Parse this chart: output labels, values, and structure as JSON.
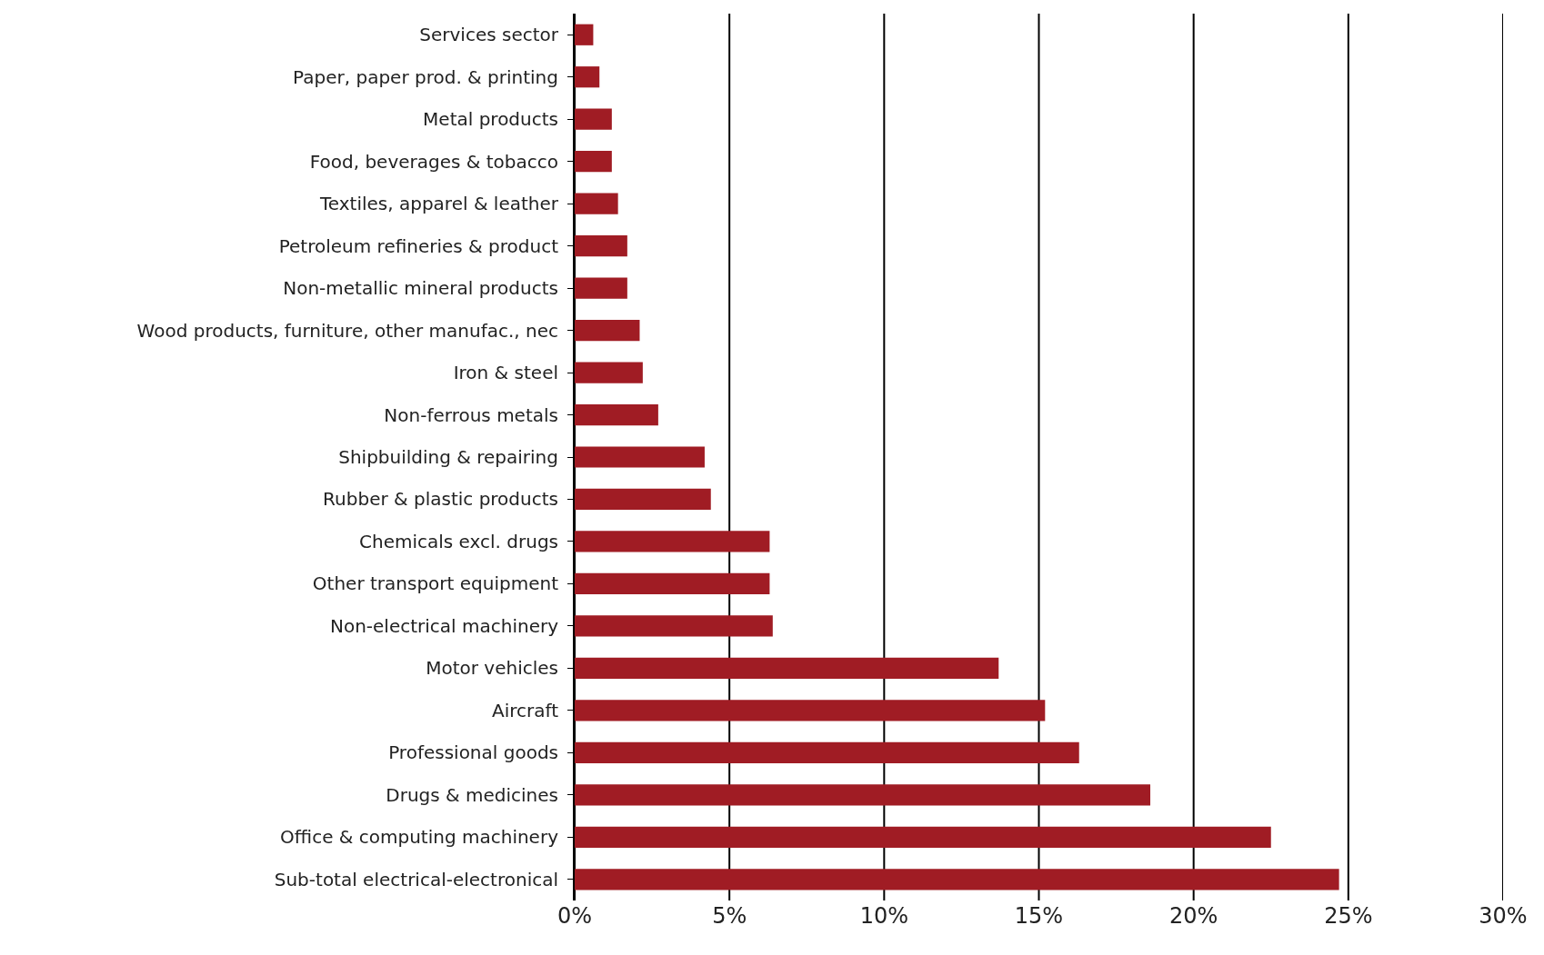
{
  "chart_data": {
    "type": "bar",
    "orientation": "horizontal",
    "grid": "x",
    "categories": [
      "Services sector",
      "Paper, paper prod. & printing",
      "Metal products",
      "Food, beverages & tobacco",
      "Textiles, apparel & leather",
      "Petroleum refineries & product",
      "Non-metallic mineral products",
      "Wood products, furniture, other manufac., nec",
      "Iron & steel",
      "Non-ferrous metals",
      "Shipbuilding & repairing",
      "Rubber & plastic products",
      "Chemicals excl. drugs",
      "Other transport equipment",
      "Non-electrical machinery",
      "Motor vehicles",
      "Aircraft",
      "Professional goods",
      "Drugs & medicines",
      "Office & computing machinery",
      "Sub-total electrical-electronical"
    ],
    "values": [
      0.6,
      0.8,
      1.2,
      1.2,
      1.4,
      1.7,
      1.7,
      2.1,
      2.2,
      2.7,
      4.2,
      4.4,
      6.3,
      6.3,
      6.4,
      13.7,
      15.2,
      16.3,
      18.6,
      22.5,
      24.7
    ],
    "color": "#a01c24",
    "xlim": [
      0,
      30
    ],
    "xticks": [
      {
        "value": 0,
        "label": "0%"
      },
      {
        "value": 5,
        "label": "5%"
      },
      {
        "value": 10,
        "label": "10%"
      },
      {
        "value": 15,
        "label": "15%"
      },
      {
        "value": 20,
        "label": "20%"
      },
      {
        "value": 25,
        "label": "25%"
      },
      {
        "value": 30,
        "label": "30%"
      }
    ]
  }
}
